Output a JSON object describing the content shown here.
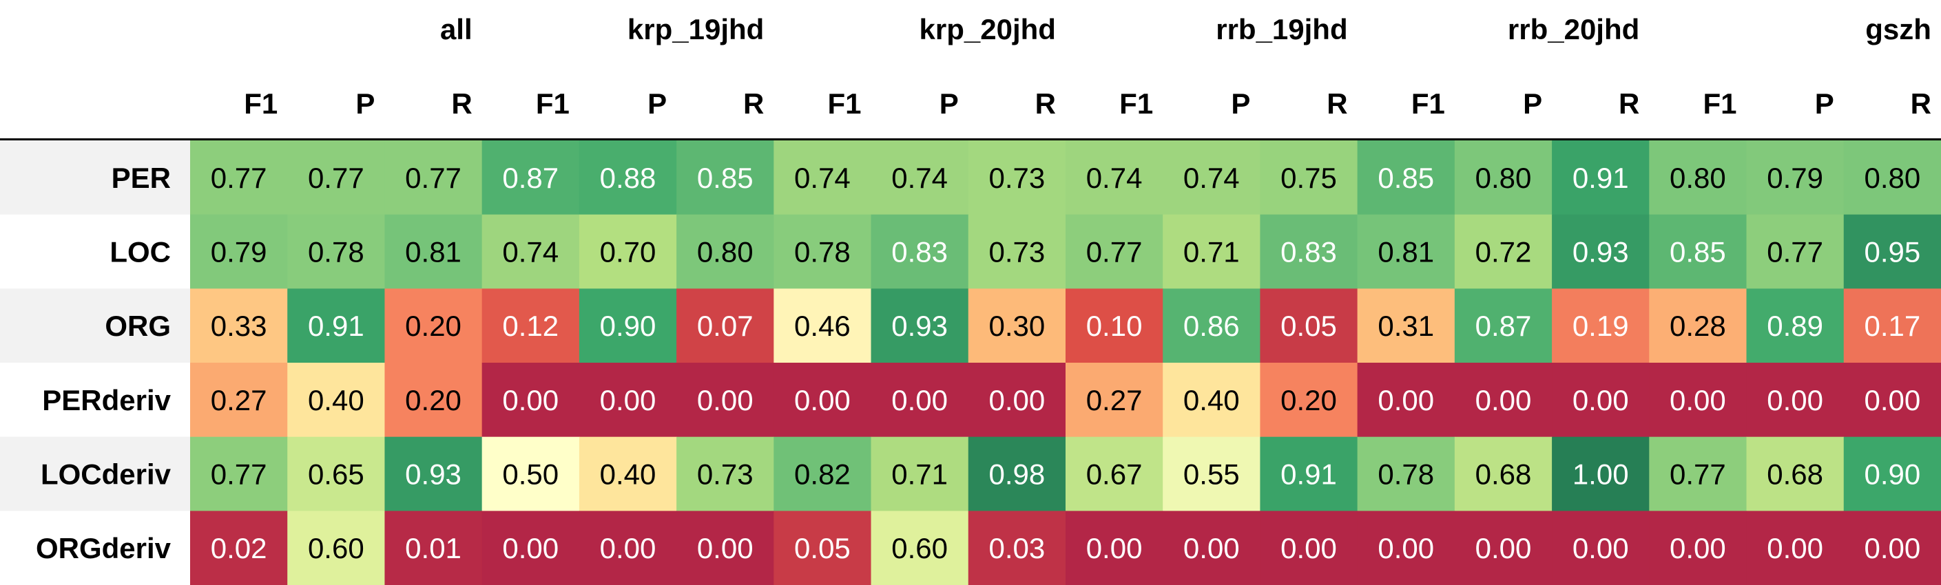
{
  "chart_data": {
    "type": "heatmap",
    "groups": [
      "all",
      "krp_19jhd",
      "krp_20jhd",
      "rrb_19jhd",
      "rrb_20jhd",
      "gszh"
    ],
    "metrics": [
      "F1",
      "P",
      "R"
    ],
    "rows": [
      "PER",
      "LOC",
      "ORG",
      "PERderiv",
      "LOCderiv",
      "ORGderiv"
    ],
    "values": [
      [
        0.77,
        0.77,
        0.77,
        0.87,
        0.88,
        0.85,
        0.74,
        0.74,
        0.73,
        0.74,
        0.74,
        0.75,
        0.85,
        0.8,
        0.91,
        0.8,
        0.79,
        0.8
      ],
      [
        0.79,
        0.78,
        0.81,
        0.74,
        0.7,
        0.8,
        0.78,
        0.83,
        0.73,
        0.77,
        0.71,
        0.83,
        0.81,
        0.72,
        0.93,
        0.85,
        0.77,
        0.95
      ],
      [
        0.33,
        0.91,
        0.2,
        0.12,
        0.9,
        0.07,
        0.46,
        0.93,
        0.3,
        0.1,
        0.86,
        0.05,
        0.31,
        0.87,
        0.19,
        0.28,
        0.89,
        0.17
      ],
      [
        0.27,
        0.4,
        0.2,
        0.0,
        0.0,
        0.0,
        0.0,
        0.0,
        0.0,
        0.27,
        0.4,
        0.2,
        0.0,
        0.0,
        0.0,
        0.0,
        0.0,
        0.0
      ],
      [
        0.77,
        0.65,
        0.93,
        0.5,
        0.4,
        0.73,
        0.82,
        0.71,
        0.98,
        0.67,
        0.55,
        0.91,
        0.78,
        0.68,
        1.0,
        0.77,
        0.68,
        0.9
      ],
      [
        0.02,
        0.6,
        0.01,
        0.0,
        0.0,
        0.0,
        0.05,
        0.6,
        0.03,
        0.0,
        0.0,
        0.0,
        0.0,
        0.0,
        0.0,
        0.0,
        0.0,
        0.0
      ]
    ],
    "colormap": "RdYlGn",
    "vmin": 0.0,
    "vmax": 1.0,
    "colors": {
      "row_label_bg_alt": "#f2f2f2",
      "header_rule": "#000000",
      "text_dark": "#000000",
      "text_light": "#ffffff"
    }
  }
}
